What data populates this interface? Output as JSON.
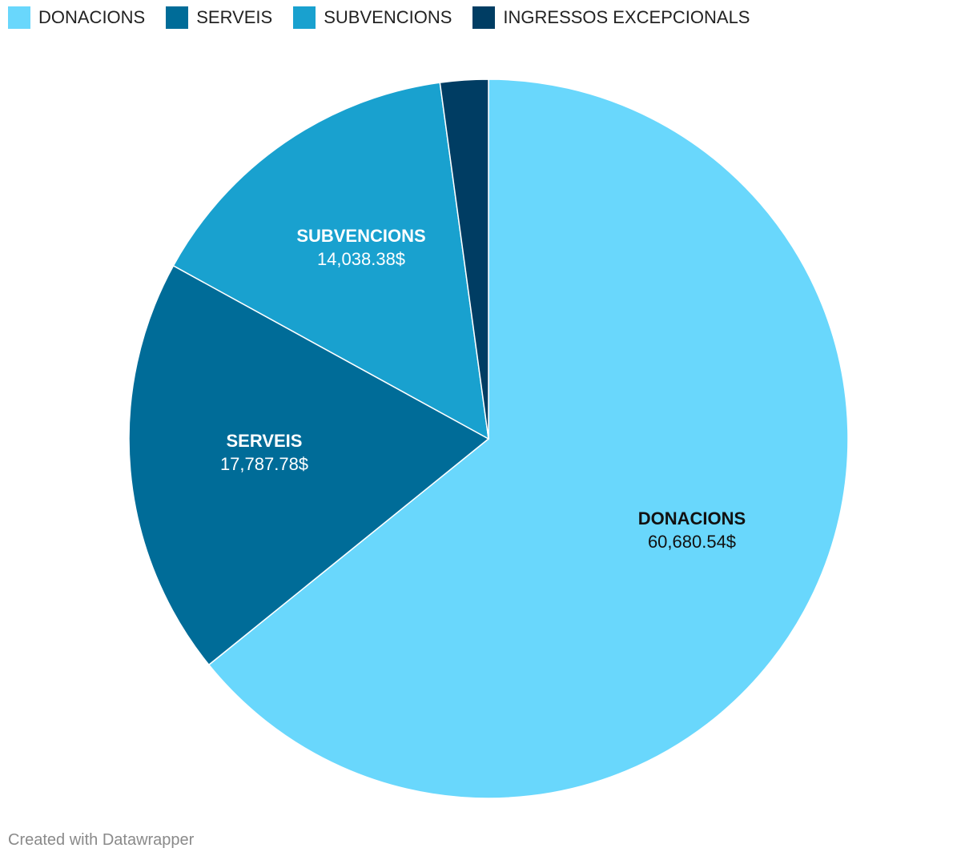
{
  "chart_data": {
    "type": "pie",
    "legend_placement": "top-left",
    "currency_suffix": "$",
    "slices": [
      {
        "name": "DONACIONS",
        "value": 60680.54,
        "label_value": "60,680.54$",
        "color": "#69d7fc",
        "label_color": "#111111"
      },
      {
        "name": "SERVEIS",
        "value": 17787.78,
        "label_value": "17,787.78$",
        "color": "#006c98",
        "label_color": "#ffffff"
      },
      {
        "name": "SUBVENCIONS",
        "value": 14038.38,
        "label_value": "14,038.38$",
        "color": "#19a1cf",
        "label_color": "#ffffff"
      },
      {
        "name": "INGRESSOS EXCEPCIONALS",
        "value": 2040,
        "label_value": "",
        "color": "#003d63",
        "label_color": "#ffffff"
      }
    ]
  },
  "footer": {
    "credit": "Created with Datawrapper"
  }
}
